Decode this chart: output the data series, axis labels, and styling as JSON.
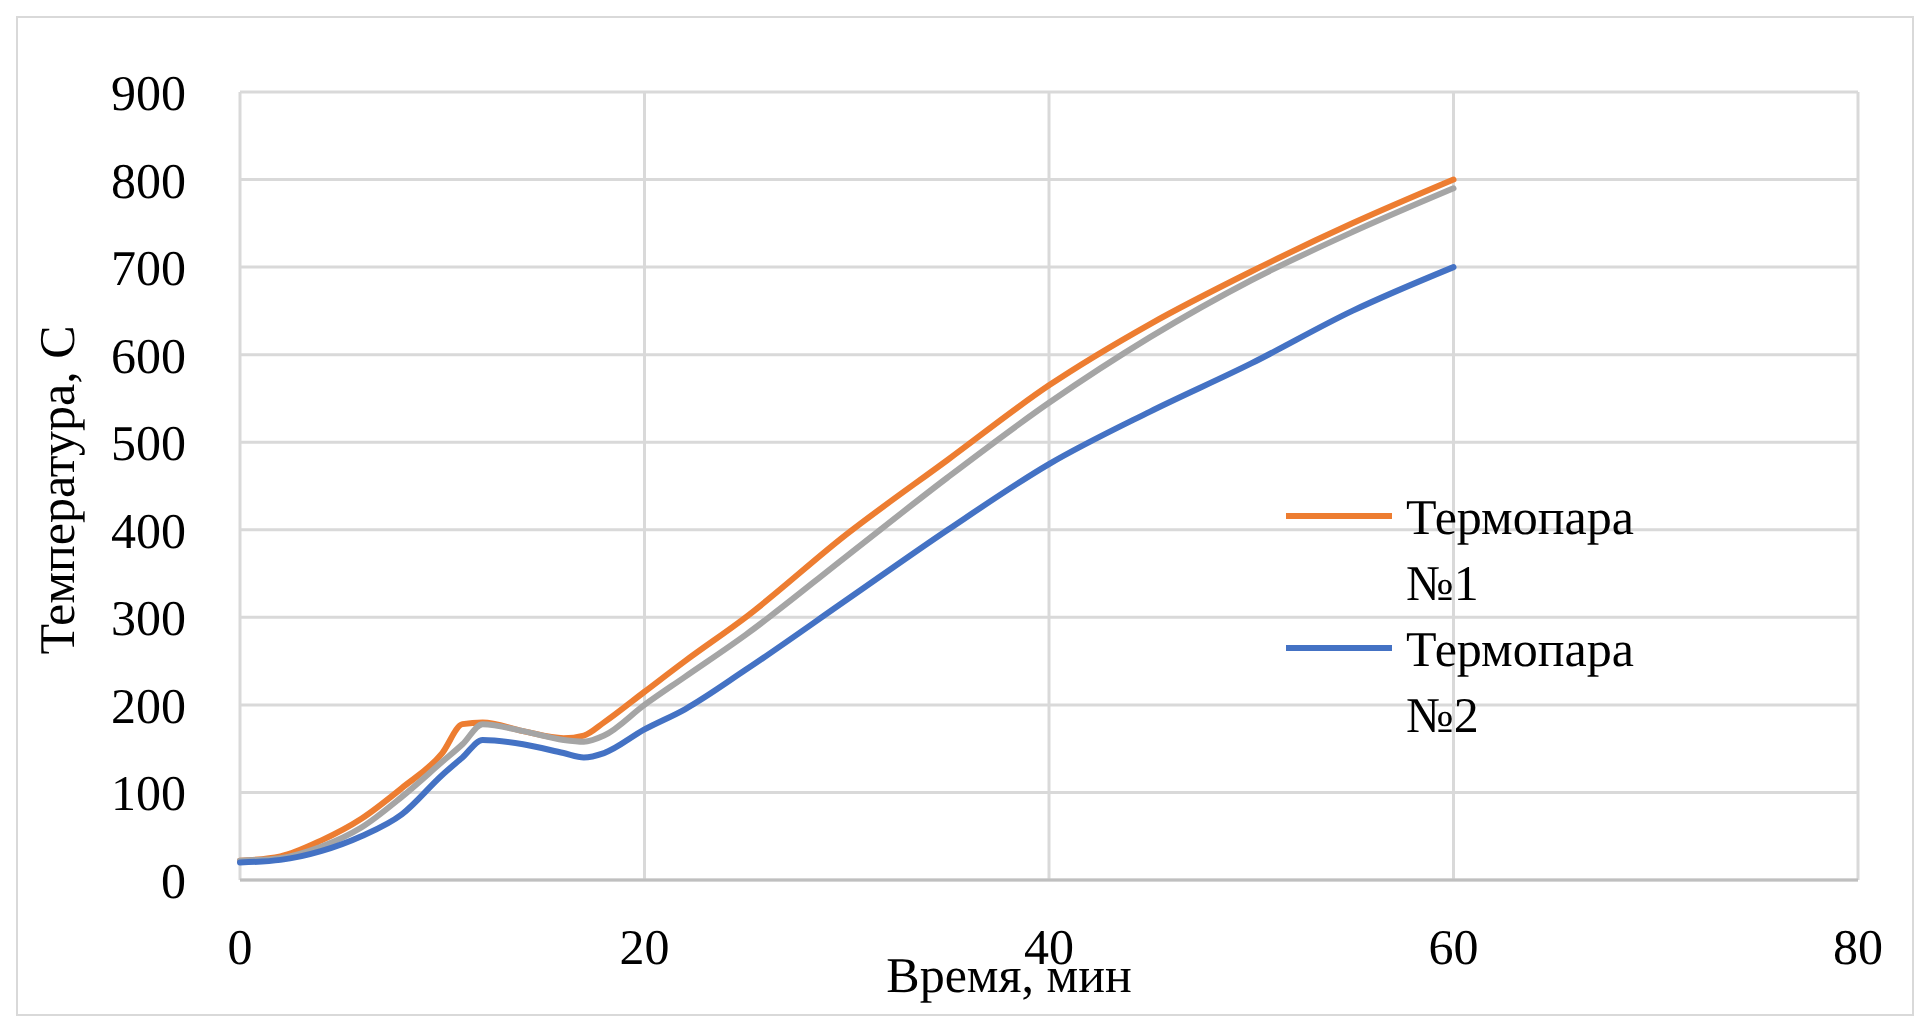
{
  "chart_data": {
    "type": "line",
    "xlabel": "Время, мин",
    "ylabel": "Температура, С",
    "xlim": [
      0,
      80
    ],
    "xticks": [
      0,
      20,
      40,
      60,
      80
    ],
    "ylim": [
      0,
      900
    ],
    "yticks": [
      0,
      100,
      200,
      300,
      400,
      500,
      600,
      700,
      800,
      900
    ],
    "grid": true,
    "legend": "right",
    "line_style": "solid",
    "marker": "none",
    "x": [
      0,
      2,
      4,
      6,
      8,
      10,
      11,
      12,
      14,
      16,
      17,
      18,
      20,
      22,
      25,
      30,
      35,
      40,
      45,
      50,
      55,
      60
    ],
    "series": [
      {
        "name": "Термопара №1",
        "color": "#ed7d31",
        "values": [
          22,
          27,
          45,
          70,
          105,
          145,
          178,
          180,
          170,
          162,
          165,
          180,
          215,
          250,
          300,
          395,
          480,
          565,
          635,
          695,
          750,
          800
        ]
      },
      {
        "color": "#a5a5a5",
        "values": [
          22,
          25,
          38,
          60,
          95,
          135,
          155,
          178,
          170,
          160,
          158,
          165,
          200,
          232,
          280,
          370,
          460,
          545,
          620,
          685,
          740,
          790
        ]
      },
      {
        "name": "Термопара №2",
        "color": "#4472c4",
        "values": [
          20,
          23,
          33,
          50,
          75,
          120,
          140,
          160,
          155,
          145,
          140,
          145,
          172,
          195,
          240,
          320,
          400,
          475,
          535,
          590,
          650,
          700
        ]
      }
    ]
  }
}
